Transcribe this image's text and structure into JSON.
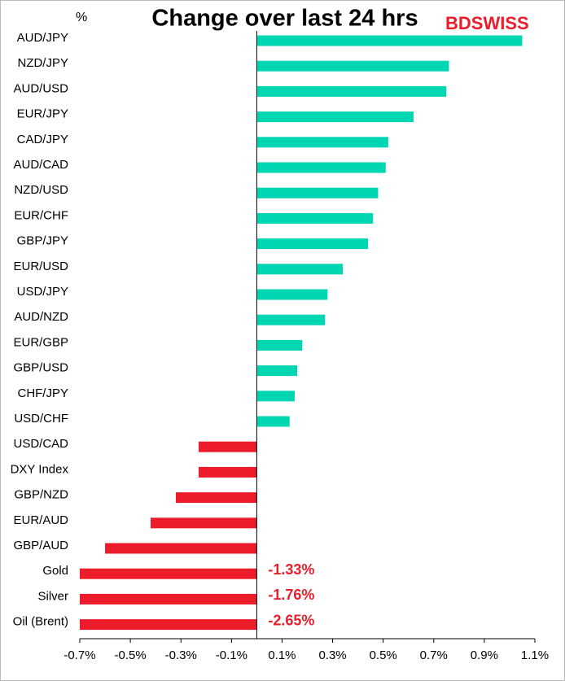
{
  "chart_data": {
    "type": "barh",
    "title": "Change over last 24 hrs",
    "unit_label": "%",
    "logo": "BDSWISS",
    "categories": [
      "AUD/JPY",
      "NZD/JPY",
      "AUD/USD",
      "EUR/JPY",
      "CAD/JPY",
      "AUD/CAD",
      "NZD/USD",
      "EUR/CHF",
      "GBP/JPY",
      "EUR/USD",
      "USD/JPY",
      "AUD/NZD",
      "EUR/GBP",
      "GBP/USD",
      "CHF/JPY",
      "USD/CHF",
      "USD/CAD",
      "DXY Index",
      "GBP/NZD",
      "EUR/AUD",
      "GBP/AUD",
      "Gold",
      "Silver",
      "Oil (Brent)"
    ],
    "values": [
      1.05,
      0.76,
      0.75,
      0.62,
      0.52,
      0.51,
      0.48,
      0.46,
      0.44,
      0.34,
      0.28,
      0.27,
      0.18,
      0.16,
      0.15,
      0.13,
      -0.23,
      -0.23,
      -0.32,
      -0.42,
      -0.6,
      -1.33,
      -1.76,
      -2.65
    ],
    "value_labels": [
      null,
      null,
      null,
      null,
      null,
      null,
      null,
      null,
      null,
      null,
      null,
      null,
      null,
      null,
      null,
      null,
      null,
      null,
      null,
      null,
      null,
      "-1.33%",
      "-1.76%",
      "-2.65%"
    ],
    "positive_color": "#00d6b1",
    "negative_color": "#ec1c2a",
    "xlim": [
      -0.7,
      1.1
    ],
    "xticks": [
      {
        "value": -0.7,
        "label": "-0.7%"
      },
      {
        "value": -0.5,
        "label": "-0.5%"
      },
      {
        "value": -0.3,
        "label": "-0.3%"
      },
      {
        "value": -0.1,
        "label": "-0.1%"
      },
      {
        "value": 0.1,
        "label": "0.1%"
      },
      {
        "value": 0.3,
        "label": "0.3%"
      },
      {
        "value": 0.5,
        "label": "0.5%"
      },
      {
        "value": 0.7,
        "label": "0.7%"
      },
      {
        "value": 0.9,
        "label": "0.9%"
      },
      {
        "value": 1.1,
        "label": "1.1%"
      }
    ],
    "grid": false
  }
}
